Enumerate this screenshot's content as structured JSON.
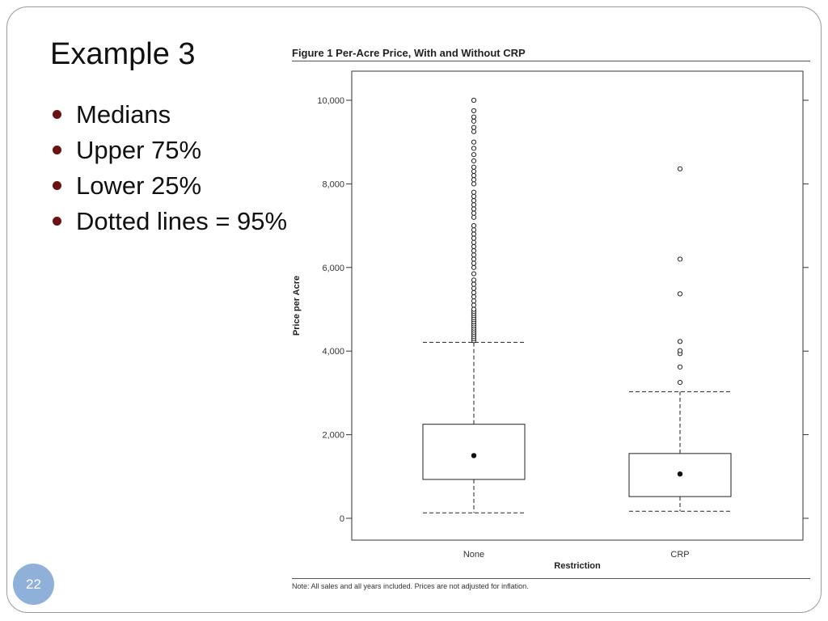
{
  "slide": {
    "title": "Example 3",
    "bullets": [
      "Medians",
      "Upper 75%",
      "Lower 25%",
      "Dotted lines = 95%"
    ],
    "page_number": "22"
  },
  "figure": {
    "title": "Figure 1  Per-Acre Price, With and Without CRP",
    "note": "Note: All sales and all years included. Prices are not adjusted for inflation."
  },
  "chart_data": {
    "type": "box",
    "title": "Figure 1  Per-Acre Price, With and Without CRP",
    "xlabel": "Restriction",
    "ylabel": "Price per Acre",
    "ylim": [
      -500,
      10700
    ],
    "yticks": [
      0,
      2000,
      4000,
      6000,
      8000,
      10000
    ],
    "ytick_labels": [
      "0",
      "2,000",
      "4,000",
      "6,000",
      "8,000",
      "10,000"
    ],
    "categories": [
      "None",
      "CRP"
    ],
    "grid": false,
    "series": [
      {
        "category": "None",
        "whisker_low": 130,
        "q1": 930,
        "median": 1500,
        "q3": 2250,
        "whisker_high": 4210,
        "outliers": [
          4250,
          4300,
          4350,
          4400,
          4450,
          4500,
          4550,
          4600,
          4650,
          4700,
          4750,
          4800,
          4850,
          4900,
          4950,
          5000,
          5100,
          5200,
          5300,
          5400,
          5500,
          5600,
          5700,
          5850,
          6000,
          6100,
          6200,
          6300,
          6400,
          6500,
          6600,
          6700,
          6800,
          6900,
          7000,
          7200,
          7300,
          7400,
          7500,
          7600,
          7700,
          7800,
          8000,
          8100,
          8200,
          8300,
          8400,
          8550,
          8700,
          8850,
          9000,
          9250,
          9350,
          9500,
          9600,
          9750,
          10000
        ]
      },
      {
        "category": "CRP",
        "whisker_low": 170,
        "q1": 520,
        "median": 1060,
        "q3": 1550,
        "whisker_high": 3030,
        "outliers": [
          3250,
          3620,
          3940,
          4010,
          4230,
          5370,
          6200,
          8360
        ]
      }
    ]
  }
}
